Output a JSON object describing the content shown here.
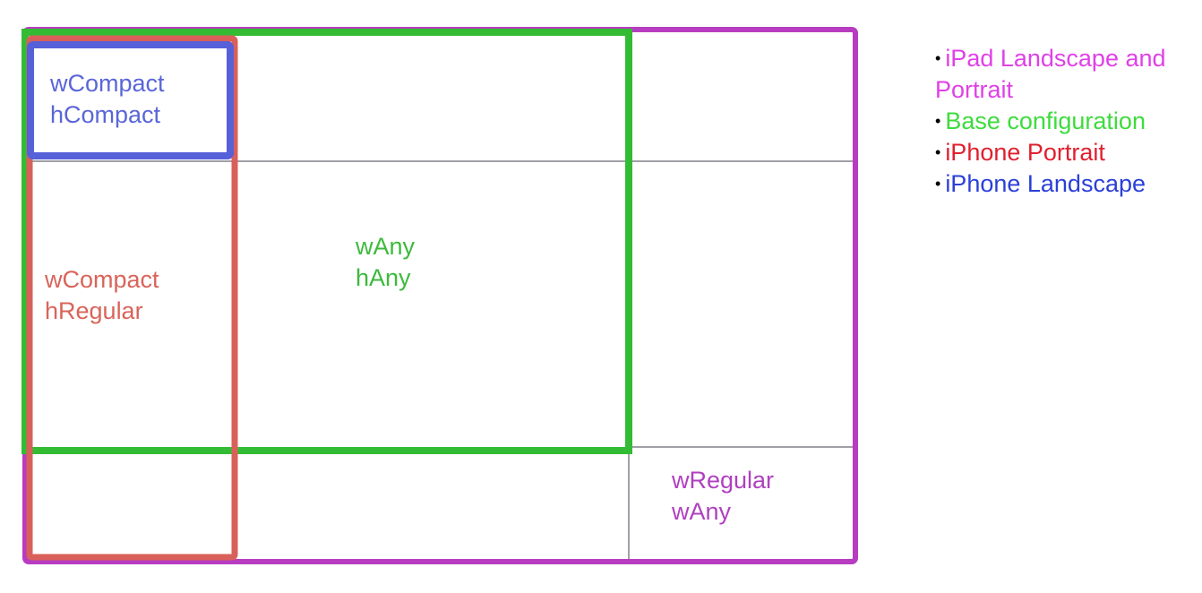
{
  "legend": [
    {
      "bullet": "•",
      "text": "iPad Landscape and Portrait",
      "color": "#e040e8"
    },
    {
      "bullet": "•",
      "text": "Base configuration",
      "color": "#3ddc3d"
    },
    {
      "bullet": "•",
      "text": "iPhone Portrait",
      "color": "#e0202e"
    },
    {
      "bullet": "•",
      "text": "iPhone Landscape",
      "color": "#2b3fd8"
    }
  ],
  "cells": {
    "compact_compact": {
      "line1": "wCompact",
      "line2": "hCompact",
      "color": "#5a66d8"
    },
    "compact_regular": {
      "line1": "wCompact",
      "line2": "hRegular",
      "color": "#d9645a"
    },
    "any_any": {
      "line1": "wAny",
      "line2": "hAny",
      "color": "#3cba3c"
    },
    "regular_any": {
      "line1": "wRegular",
      "line2": "wAny",
      "color": "#b040c0"
    }
  },
  "frame_colors": {
    "ipad": "#b73cc0",
    "base": "#33bb33",
    "iphone_portrait": "#d9605a",
    "iphone_landscape": "#5560d9",
    "grid": "#a0a0a8"
  }
}
